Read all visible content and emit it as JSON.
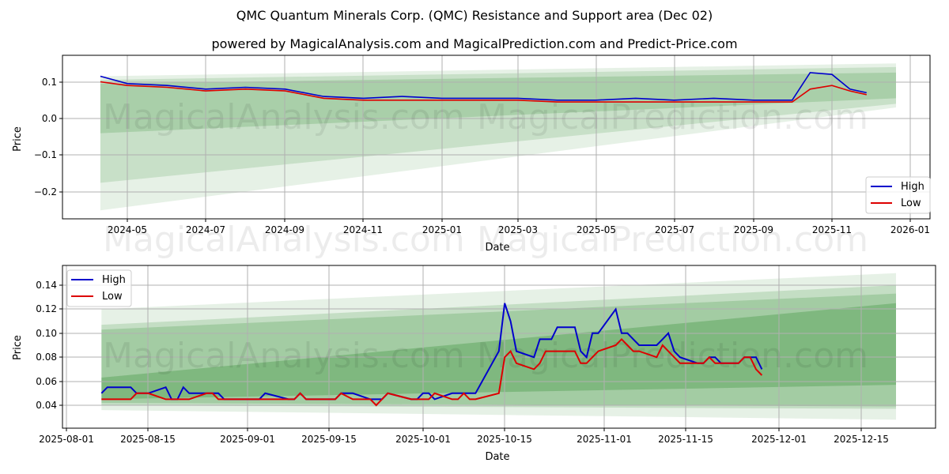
{
  "header": {
    "title": "QMC Quantum Minerals Corp. (QMC) Resistance and Support area (Dec 02)",
    "subtitle": "powered by MagicalAnalysis.com and MagicalPrediction.com and Predict-Price.com"
  },
  "watermarks": [
    "MagicalAnalysis.com",
    "MagicalPrediction.com"
  ],
  "colors": {
    "high": "#0000cc",
    "low": "#dd0000",
    "band": "#2e8b2e",
    "grid": "#b0b0b0"
  },
  "chart_data": [
    {
      "type": "line",
      "title": "Full history",
      "xlabel": "Date",
      "ylabel": "Price",
      "ylim": [
        -0.275,
        0.17
      ],
      "grid": true,
      "legend_position": "lower right",
      "x_ticks": [
        "2024-05",
        "2024-07",
        "2024-09",
        "2024-11",
        "2025-01",
        "2025-03",
        "2025-05",
        "2025-07",
        "2025-09",
        "2025-11",
        "2026-01"
      ],
      "y_ticks": [
        "−0.2",
        "−0.1",
        "0.0",
        "0.1"
      ],
      "x": [
        "2024-04-10",
        "2024-05-01",
        "2024-06-01",
        "2024-07-01",
        "2024-08-01",
        "2024-09-01",
        "2024-10-01",
        "2024-11-01",
        "2024-12-01",
        "2025-01-01",
        "2025-02-01",
        "2025-03-01",
        "2025-04-01",
        "2025-05-01",
        "2025-06-01",
        "2025-07-01",
        "2025-08-01",
        "2025-09-01",
        "2025-10-01",
        "2025-10-15",
        "2025-11-01",
        "2025-11-15",
        "2025-11-28"
      ],
      "series": [
        {
          "name": "High",
          "values": [
            0.115,
            0.095,
            0.09,
            0.08,
            0.085,
            0.08,
            0.06,
            0.055,
            0.06,
            0.055,
            0.055,
            0.055,
            0.05,
            0.05,
            0.055,
            0.05,
            0.055,
            0.05,
            0.05,
            0.125,
            0.12,
            0.08,
            0.07
          ]
        },
        {
          "name": "Low",
          "values": [
            0.1,
            0.09,
            0.085,
            0.075,
            0.08,
            0.075,
            0.055,
            0.05,
            0.05,
            0.05,
            0.05,
            0.05,
            0.045,
            0.045,
            0.045,
            0.045,
            0.045,
            0.045,
            0.045,
            0.08,
            0.09,
            0.075,
            0.065
          ]
        }
      ],
      "bands": [
        {
          "name": "outer-support-resistance",
          "start": [
            0.115,
            -0.25
          ],
          "end": [
            0.15,
            0.03
          ]
        },
        {
          "name": "mid-band",
          "start": [
            0.105,
            -0.175
          ],
          "end": [
            0.14,
            0.04
          ]
        },
        {
          "name": "inner-band",
          "start": [
            0.095,
            -0.04
          ],
          "end": [
            0.125,
            0.055
          ]
        }
      ]
    },
    {
      "type": "line",
      "title": "Recent zoom",
      "xlabel": "Date",
      "ylabel": "Price",
      "ylim": [
        0.022,
        0.155
      ],
      "grid": true,
      "legend_position": "upper left",
      "x_ticks": [
        "2025-08-01",
        "2025-08-15",
        "2025-09-01",
        "2025-09-15",
        "2025-10-01",
        "2025-10-15",
        "2025-11-01",
        "2025-11-15",
        "2025-12-01",
        "2025-12-15"
      ],
      "y_ticks": [
        "0.04",
        "0.06",
        "0.08",
        "0.10",
        "0.12",
        "0.14"
      ],
      "x": [
        "2025-08-07",
        "2025-08-08",
        "2025-08-12",
        "2025-08-13",
        "2025-08-14",
        "2025-08-15",
        "2025-08-18",
        "2025-08-19",
        "2025-08-20",
        "2025-08-21",
        "2025-08-22",
        "2025-08-25",
        "2025-08-26",
        "2025-08-27",
        "2025-08-28",
        "2025-09-03",
        "2025-09-04",
        "2025-09-08",
        "2025-09-09",
        "2025-09-10",
        "2025-09-11",
        "2025-09-12",
        "2025-09-16",
        "2025-09-17",
        "2025-09-19",
        "2025-09-22",
        "2025-09-23",
        "2025-09-24",
        "2025-09-25",
        "2025-09-29",
        "2025-09-30",
        "2025-10-01",
        "2025-10-02",
        "2025-10-03",
        "2025-10-06",
        "2025-10-07",
        "2025-10-08",
        "2025-10-09",
        "2025-10-10",
        "2025-10-14",
        "2025-10-15",
        "2025-10-16",
        "2025-10-17",
        "2025-10-20",
        "2025-10-21",
        "2025-10-22",
        "2025-10-23",
        "2025-10-24",
        "2025-10-27",
        "2025-10-28",
        "2025-10-29",
        "2025-10-30",
        "2025-10-31",
        "2025-11-03",
        "2025-11-04",
        "2025-11-05",
        "2025-11-06",
        "2025-11-07",
        "2025-11-10",
        "2025-11-11",
        "2025-11-12",
        "2025-11-13",
        "2025-11-14",
        "2025-11-17",
        "2025-11-18",
        "2025-11-19",
        "2025-11-20",
        "2025-11-21",
        "2025-11-24",
        "2025-11-25",
        "2025-11-26",
        "2025-11-27",
        "2025-11-28"
      ],
      "series": [
        {
          "name": "High",
          "values": [
            0.05,
            0.055,
            0.055,
            0.05,
            0.05,
            0.05,
            0.055,
            0.045,
            0.045,
            0.055,
            0.05,
            0.05,
            0.05,
            0.05,
            0.045,
            0.045,
            0.05,
            0.045,
            0.045,
            0.05,
            0.045,
            0.045,
            0.045,
            0.05,
            0.05,
            0.045,
            0.045,
            0.045,
            0.05,
            0.045,
            0.045,
            0.05,
            0.05,
            0.045,
            0.05,
            0.05,
            0.05,
            0.05,
            0.05,
            0.085,
            0.125,
            0.11,
            0.085,
            0.08,
            0.095,
            0.095,
            0.095,
            0.105,
            0.105,
            0.085,
            0.08,
            0.1,
            0.1,
            0.12,
            0.1,
            0.1,
            0.095,
            0.09,
            0.09,
            0.095,
            0.1,
            0.085,
            0.08,
            0.075,
            0.075,
            0.08,
            0.08,
            0.075,
            0.075,
            0.08,
            0.08,
            0.08,
            0.07
          ]
        },
        {
          "name": "Low",
          "values": [
            0.045,
            0.045,
            0.045,
            0.05,
            0.05,
            0.05,
            0.045,
            0.045,
            0.045,
            0.045,
            0.045,
            0.05,
            0.05,
            0.045,
            0.045,
            0.045,
            0.045,
            0.045,
            0.045,
            0.05,
            0.045,
            0.045,
            0.045,
            0.05,
            0.045,
            0.045,
            0.04,
            0.045,
            0.05,
            0.045,
            0.045,
            0.045,
            0.045,
            0.05,
            0.045,
            0.045,
            0.05,
            0.045,
            0.045,
            0.05,
            0.08,
            0.085,
            0.075,
            0.07,
            0.075,
            0.085,
            0.085,
            0.085,
            0.085,
            0.075,
            0.075,
            0.08,
            0.085,
            0.09,
            0.095,
            0.09,
            0.085,
            0.085,
            0.08,
            0.09,
            0.085,
            0.08,
            0.075,
            0.075,
            0.075,
            0.08,
            0.075,
            0.075,
            0.075,
            0.08,
            0.08,
            0.07,
            0.065
          ]
        }
      ],
      "bands": [
        {
          "name": "outer-band",
          "start": [
            0.12,
            0.036
          ],
          "end": [
            0.15,
            0.028
          ]
        },
        {
          "name": "mid-band",
          "start": [
            0.107,
            0.04
          ],
          "end": [
            0.14,
            0.037
          ]
        },
        {
          "name": "inner-band",
          "start": [
            0.103,
            0.042
          ],
          "end": [
            0.133,
            0.039
          ]
        },
        {
          "name": "core-band",
          "start": [
            0.063,
            0.045
          ],
          "end": [
            0.125,
            0.057
          ]
        }
      ]
    }
  ],
  "legend": {
    "high": "High",
    "low": "Low"
  }
}
